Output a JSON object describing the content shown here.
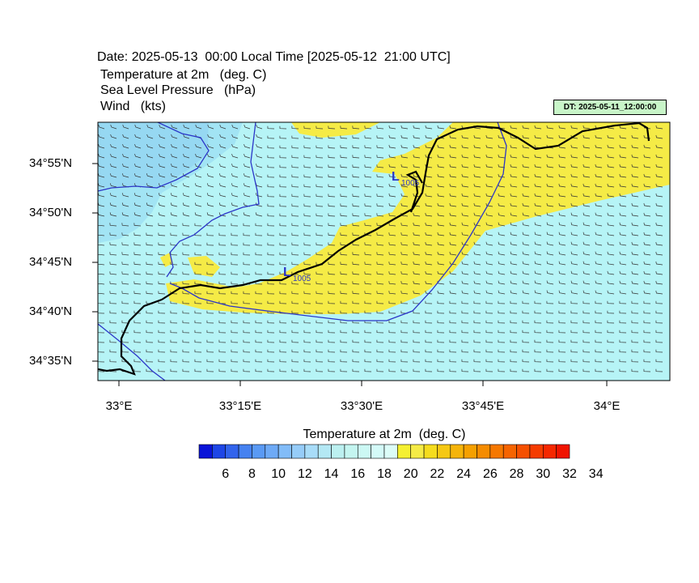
{
  "header": {
    "date_line": "Date: 2025-05-13  00:00 Local Time [2025-05-12  21:00 UTC]",
    "fields": [
      "Temperature at 2m   (deg. C)",
      "Sea Level Pressure   (hPa)",
      "Wind   (kts)"
    ],
    "dt_label": "DT: 2025-05-11_12:00:00"
  },
  "map": {
    "lat_labels": [
      "34°55'N",
      "34°50'N",
      "34°45'N",
      "34°40'N",
      "34°35'N"
    ],
    "lon_labels": [
      "33°E",
      "33°15'E",
      "33°30'E",
      "33°45'E",
      "34°E"
    ],
    "pressure_lows": [
      {
        "symbol": "L",
        "value": "1005"
      },
      {
        "symbol": "L",
        "value": "1005"
      }
    ],
    "colors": {
      "cool_light": "#b4f5f5",
      "cool_mid": "#a6ecf4",
      "cool_deep": "#9adcf0",
      "warm": "#f5eb46",
      "isobar": "#2b35c8",
      "coast": "#000000"
    }
  },
  "colorbar": {
    "title": "Temperature at 2m  (deg. C)",
    "labels": [
      "6",
      "8",
      "10",
      "12",
      "14",
      "16",
      "18",
      "20",
      "22",
      "24",
      "26",
      "28",
      "30",
      "32",
      "34"
    ],
    "colors": [
      "#0a14d8",
      "#1e46e6",
      "#3264ec",
      "#4682f0",
      "#5a9af4",
      "#6eaaf6",
      "#82bcf8",
      "#96ccf8",
      "#a8dcf8",
      "#b4e8f4",
      "#bcf0f0",
      "#c4f5f0",
      "#ccf8f4",
      "#d4faf8",
      "#dcfcf8",
      "#f5f032",
      "#f5eb46",
      "#f5dc1e",
      "#f5c814",
      "#f5b40a",
      "#f5a000",
      "#f58c00",
      "#f57800",
      "#f56400",
      "#f55000",
      "#f53c00",
      "#f52800",
      "#f01400"
    ]
  }
}
